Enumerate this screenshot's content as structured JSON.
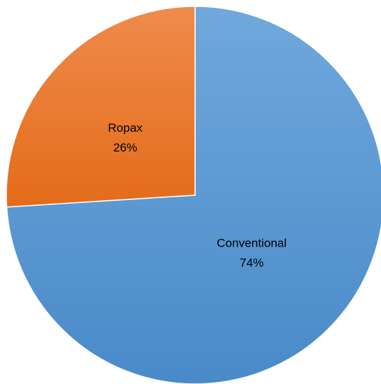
{
  "chart_data": {
    "type": "pie",
    "title": "",
    "slices": [
      {
        "name": "Conventional",
        "percent_label": "74%",
        "value": 74,
        "color": "#5b9bd5",
        "color_light": "#6fa8dc",
        "color_dark": "#4a8ac9"
      },
      {
        "name": "Ropax",
        "percent_label": "26%",
        "value": 26,
        "color": "#ed7d31",
        "color_light": "#ef8b4c",
        "color_dark": "#e46c1a"
      }
    ],
    "start_angle_deg": 0,
    "direction": "clockwise",
    "legend": "none",
    "data_labels": "inside"
  }
}
